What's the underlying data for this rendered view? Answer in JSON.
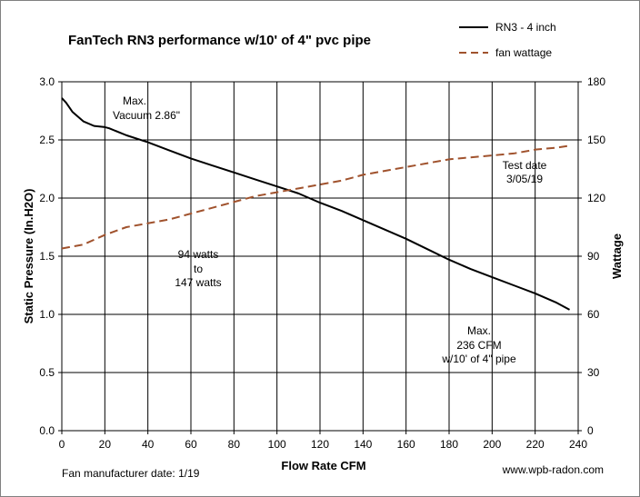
{
  "chart_data": {
    "type": "line",
    "title": "FanTech RN3  performance w/10' of 4\" pvc pipe",
    "xlabel": "Flow Rate  CFM",
    "ylabel": "Static Pressure  (In.H2O)",
    "y2label": "Wattage",
    "xlim": [
      0,
      240
    ],
    "ylim": [
      0,
      3.0
    ],
    "y2lim": [
      0,
      180
    ],
    "x_ticks": [
      "0",
      "20",
      "40",
      "60",
      "80",
      "100",
      "120",
      "140",
      "160",
      "180",
      "200",
      "220",
      "240"
    ],
    "y_ticks": [
      "0.0",
      "0.5",
      "1.0",
      "1.5",
      "2.0",
      "2.5",
      "3.0"
    ],
    "y2_ticks": [
      "0",
      "30",
      "60",
      "90",
      "120",
      "150",
      "180"
    ],
    "grid": true,
    "legend_position": "top-right",
    "series": [
      {
        "name": "RN3 - 4 inch",
        "axis": "left",
        "color": "#000000",
        "style": "solid",
        "x": [
          0,
          2,
          5,
          10,
          15,
          20,
          22,
          30,
          40,
          50,
          60,
          70,
          80,
          90,
          100,
          110,
          120,
          130,
          140,
          150,
          160,
          170,
          180,
          190,
          200,
          210,
          220,
          230,
          236
        ],
        "y": [
          2.86,
          2.82,
          2.74,
          2.66,
          2.62,
          2.61,
          2.6,
          2.54,
          2.48,
          2.41,
          2.34,
          2.28,
          2.22,
          2.16,
          2.1,
          2.04,
          1.96,
          1.89,
          1.81,
          1.73,
          1.65,
          1.56,
          1.47,
          1.39,
          1.32,
          1.25,
          1.18,
          1.1,
          1.04
        ]
      },
      {
        "name": "fan wattage",
        "axis": "right",
        "color": "#a0522d",
        "style": "dashed",
        "x": [
          0,
          10,
          20,
          30,
          40,
          50,
          60,
          70,
          80,
          90,
          100,
          110,
          120,
          130,
          140,
          150,
          160,
          170,
          180,
          190,
          200,
          210,
          220,
          230,
          236
        ],
        "y": [
          94,
          96,
          101,
          105,
          107,
          109,
          112,
          115,
          118,
          121,
          123,
          125,
          127,
          129,
          132,
          134,
          136,
          138,
          140,
          141,
          142,
          143,
          145,
          146,
          147
        ]
      }
    ],
    "annotations": {
      "max_vacuum": [
        "Max.",
        "Vacuum 2.86\""
      ],
      "watts": [
        "94 watts",
        "to",
        "147 watts"
      ],
      "test_date": [
        "Test date",
        "3/05/19"
      ],
      "max_cfm": [
        "Max.",
        "236 CFM",
        "w/10' of 4\" pipe"
      ]
    },
    "footer_left": "Fan manufacturer date: 1/19",
    "footer_right": "www.wpb-radon.com"
  }
}
